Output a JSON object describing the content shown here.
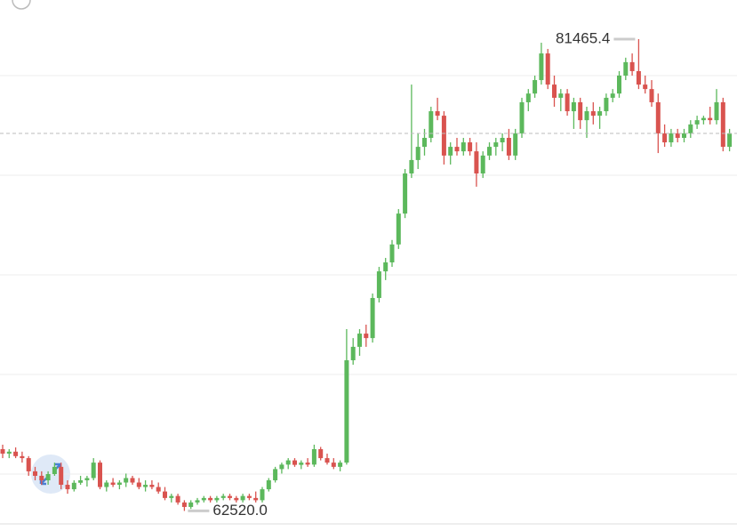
{
  "chart_data": {
    "type": "candlestick",
    "up_color": "#5cb85c",
    "down_color": "#d9534f",
    "ylim": [
      61714,
      83036
    ],
    "gridlines": [
      64000,
      68000,
      72000,
      76000,
      80000
    ],
    "last_price_line": true,
    "annotations": [
      {
        "text": "81465.4",
        "at": "max"
      },
      {
        "text": "62520.0",
        "at": "min"
      }
    ],
    "ohlc": [
      [
        65000,
        65180,
        64640,
        64820
      ],
      [
        64820,
        65000,
        64640,
        64900
      ],
      [
        64900,
        65070,
        64640,
        64720
      ],
      [
        64720,
        64900,
        64460,
        64640
      ],
      [
        64640,
        64720,
        63930,
        64110
      ],
      [
        64110,
        64290,
        63750,
        63930
      ],
      [
        63930,
        64110,
        63570,
        63750
      ],
      [
        63750,
        64110,
        63570,
        64000
      ],
      [
        64000,
        64460,
        63930,
        64290
      ],
      [
        64290,
        64460,
        63390,
        63570
      ],
      [
        63570,
        63750,
        63210,
        63390
      ],
      [
        63390,
        63750,
        63300,
        63650
      ],
      [
        63650,
        63930,
        63570,
        63750
      ],
      [
        63750,
        63930,
        63500,
        63840
      ],
      [
        63840,
        64640,
        63750,
        64460
      ],
      [
        64460,
        64550,
        63390,
        63480
      ],
      [
        63480,
        63750,
        63300,
        63660
      ],
      [
        63660,
        63840,
        63480,
        63570
      ],
      [
        63570,
        63750,
        63390,
        63660
      ],
      [
        63660,
        64020,
        63480,
        63840
      ],
      [
        63840,
        63930,
        63570,
        63660
      ],
      [
        63660,
        63840,
        63390,
        63480
      ],
      [
        63480,
        63750,
        63300,
        63570
      ],
      [
        63570,
        63750,
        63390,
        63480
      ],
      [
        63480,
        63660,
        63210,
        63300
      ],
      [
        63300,
        63480,
        62950,
        63040
      ],
      [
        63040,
        63210,
        62860,
        63120
      ],
      [
        63120,
        63210,
        62770,
        62860
      ],
      [
        62860,
        62950,
        62520,
        62680
      ],
      [
        62680,
        62950,
        62600,
        62860
      ],
      [
        62860,
        63040,
        62770,
        62950
      ],
      [
        62950,
        63120,
        62860,
        63040
      ],
      [
        63040,
        63120,
        62860,
        62950
      ],
      [
        62950,
        63120,
        62860,
        63040
      ],
      [
        63040,
        63210,
        62950,
        63120
      ],
      [
        63120,
        63210,
        62950,
        63040
      ],
      [
        63040,
        63120,
        62860,
        62950
      ],
      [
        62950,
        63210,
        62860,
        63120
      ],
      [
        63120,
        63210,
        62950,
        63040
      ],
      [
        63040,
        63300,
        62860,
        62950
      ],
      [
        62950,
        63480,
        62860,
        63390
      ],
      [
        63390,
        63840,
        63300,
        63750
      ],
      [
        63750,
        64290,
        63660,
        64200
      ],
      [
        64200,
        64460,
        64020,
        64380
      ],
      [
        64380,
        64640,
        64200,
        64550
      ],
      [
        64550,
        64640,
        64290,
        64370
      ],
      [
        64370,
        64550,
        64200,
        64460
      ],
      [
        64460,
        64640,
        64290,
        64380
      ],
      [
        64380,
        65180,
        64290,
        65000
      ],
      [
        65000,
        65090,
        64550,
        64640
      ],
      [
        64640,
        64820,
        64380,
        64460
      ],
      [
        64460,
        64640,
        64200,
        64290
      ],
      [
        64290,
        64550,
        64110,
        64460
      ],
      [
        64460,
        69820,
        64380,
        68570
      ],
      [
        68570,
        69460,
        68390,
        69110
      ],
      [
        69110,
        69820,
        68750,
        69640
      ],
      [
        69640,
        70000,
        69110,
        69460
      ],
      [
        69460,
        71250,
        69280,
        71070
      ],
      [
        71070,
        72320,
        70890,
        72140
      ],
      [
        72140,
        72680,
        71790,
        72500
      ],
      [
        72500,
        73400,
        72320,
        73220
      ],
      [
        73220,
        74640,
        73040,
        74460
      ],
      [
        74460,
        76250,
        74280,
        76070
      ],
      [
        76070,
        79640,
        75890,
        76610
      ],
      [
        76610,
        77680,
        76250,
        77140
      ],
      [
        77140,
        77860,
        76790,
        77500
      ],
      [
        77500,
        78750,
        77320,
        78570
      ],
      [
        78570,
        79110,
        78210,
        78390
      ],
      [
        78390,
        78570,
        76430,
        76790
      ],
      [
        76790,
        77320,
        76430,
        77140
      ],
      [
        77140,
        77500,
        76790,
        76960
      ],
      [
        76960,
        77500,
        76790,
        77320
      ],
      [
        77320,
        77500,
        76790,
        76960
      ],
      [
        76960,
        77320,
        75540,
        76070
      ],
      [
        76070,
        76960,
        75890,
        76790
      ],
      [
        76790,
        77320,
        76610,
        77140
      ],
      [
        77140,
        77500,
        76790,
        77320
      ],
      [
        77320,
        77680,
        76960,
        77500
      ],
      [
        77500,
        77860,
        76610,
        76790
      ],
      [
        76790,
        77860,
        76610,
        77680
      ],
      [
        77680,
        79110,
        77500,
        78930
      ],
      [
        78930,
        79460,
        78570,
        79280
      ],
      [
        79280,
        80000,
        79110,
        79820
      ],
      [
        79820,
        81320,
        79640,
        80890
      ],
      [
        80890,
        81070,
        79460,
        79640
      ],
      [
        79640,
        80000,
        78750,
        79110
      ],
      [
        79110,
        79460,
        78570,
        79280
      ],
      [
        79280,
        79460,
        78390,
        78570
      ],
      [
        78570,
        79110,
        77860,
        78930
      ],
      [
        78930,
        79110,
        77860,
        78210
      ],
      [
        78210,
        78750,
        77500,
        78570
      ],
      [
        78570,
        78930,
        78040,
        78390
      ],
      [
        78390,
        78750,
        77860,
        78570
      ],
      [
        78570,
        79280,
        78390,
        79110
      ],
      [
        79110,
        79460,
        78930,
        79280
      ],
      [
        79280,
        80180,
        79110,
        80000
      ],
      [
        80000,
        80720,
        79820,
        80540
      ],
      [
        80540,
        80890,
        80000,
        80180
      ],
      [
        80180,
        81465.4,
        79460,
        79640
      ],
      [
        79640,
        80000,
        79280,
        79460
      ],
      [
        79460,
        79820,
        78750,
        78930
      ],
      [
        78930,
        79280,
        76890,
        77680
      ],
      [
        77680,
        78040,
        77140,
        77320
      ],
      [
        77320,
        77860,
        77140,
        77680
      ],
      [
        77680,
        77860,
        77320,
        77500
      ],
      [
        77500,
        77860,
        77320,
        77680
      ],
      [
        77680,
        78210,
        77500,
        78040
      ],
      [
        78040,
        78390,
        77860,
        78210
      ],
      [
        78210,
        78390,
        78040,
        78300
      ],
      [
        78300,
        78750,
        78040,
        78210
      ],
      [
        78210,
        79460,
        78040,
        78930
      ],
      [
        78930,
        79110,
        76960,
        77140
      ],
      [
        77140,
        77860,
        76960,
        77680
      ]
    ]
  }
}
